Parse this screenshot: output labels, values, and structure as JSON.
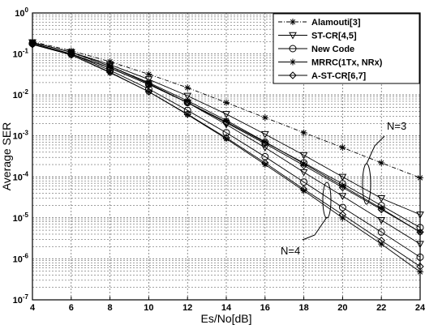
{
  "chart_data": {
    "type": "line",
    "title": "",
    "xlabel": "Es/No[dB]",
    "ylabel": "Average SER",
    "xlim": [
      4,
      24
    ],
    "ylim_log10": [
      -7,
      0
    ],
    "yscale": "log",
    "grid": true,
    "legend_position": "top-right",
    "x_ticks": [
      4,
      6,
      8,
      10,
      12,
      14,
      16,
      18,
      20,
      22,
      24
    ],
    "y_tick_exponents": [
      0,
      -1,
      -2,
      -3,
      -4,
      -5,
      -6,
      -7
    ],
    "y_tick_base": "10",
    "series": [
      {
        "name": "Alamouti[3]",
        "marker": "star",
        "line": "dashdot",
        "x": [
          4,
          6,
          8,
          10,
          12,
          14,
          16,
          18,
          20,
          22,
          24
        ],
        "y": [
          0.2,
          0.12,
          0.065,
          0.032,
          0.015,
          0.0065,
          0.0028,
          0.0012,
          0.00052,
          0.00022,
          9.5e-05
        ]
      },
      {
        "name": "ST-CR[4,5]",
        "marker": "triangle-down",
        "line": "solid",
        "x": [
          4,
          6,
          8,
          10,
          12,
          14,
          16,
          18,
          20,
          22,
          24
        ],
        "y": [
          0.19,
          0.11,
          0.055,
          0.024,
          0.0095,
          0.0034,
          0.0011,
          0.00034,
          0.0001,
          3e-05,
          1.2e-05
        ]
      },
      {
        "name": "New Code",
        "marker": "circle",
        "line": "solid",
        "x": [
          4,
          6,
          8,
          10,
          12,
          14,
          16,
          18,
          20,
          22,
          24
        ],
        "y": [
          0.18,
          0.1,
          0.045,
          0.018,
          0.0065,
          0.0022,
          0.0007,
          0.00022,
          6.8e-05,
          2e-05,
          5.8e-06
        ]
      },
      {
        "name": "MRRC(1Tx, NRx)",
        "marker": "star",
        "line": "solid",
        "x": [
          4,
          6,
          8,
          10,
          12,
          14,
          16,
          18,
          20,
          22,
          24
        ],
        "y": [
          0.19,
          0.11,
          0.05,
          0.02,
          0.0072,
          0.0024,
          0.00072,
          0.00021,
          6e-05,
          1.7e-05,
          4.5e-06
        ]
      },
      {
        "name": "A-ST-CR[6,7]",
        "marker": "diamond",
        "line": "solid",
        "x": [
          4,
          6,
          8,
          10,
          12,
          14,
          16,
          18,
          20,
          22,
          24
        ],
        "y": [
          0.18,
          0.1,
          0.046,
          0.018,
          0.0065,
          0.0021,
          0.00065,
          0.00019,
          5.5e-05,
          1.6e-05,
          4.5e-06
        ]
      }
    ],
    "series_n4": [
      {
        "marker": "triangle-down",
        "y": [
          0.19,
          0.11,
          0.05,
          0.019,
          0.0065,
          0.0019,
          0.00052,
          0.00013,
          3.4e-05,
          8.8e-06,
          2.3e-06
        ]
      },
      {
        "marker": "circle",
        "y": [
          0.18,
          0.1,
          0.04,
          0.014,
          0.0042,
          0.0012,
          0.00031,
          7.5e-05,
          1.8e-05,
          4.5e-06,
          1.1e-06
        ]
      },
      {
        "marker": "star",
        "y": [
          0.18,
          0.095,
          0.035,
          0.012,
          0.0033,
          0.00085,
          0.0002,
          4.6e-05,
          1e-05,
          2.3e-06,
          4.8e-07
        ]
      },
      {
        "marker": "diamond",
        "y": [
          0.17,
          0.095,
          0.036,
          0.012,
          0.0034,
          0.0009,
          0.00022,
          5e-05,
          1.2e-05,
          2.8e-06,
          6.5e-07
        ]
      }
    ],
    "annotations": [
      "N=3",
      "N=4"
    ]
  }
}
